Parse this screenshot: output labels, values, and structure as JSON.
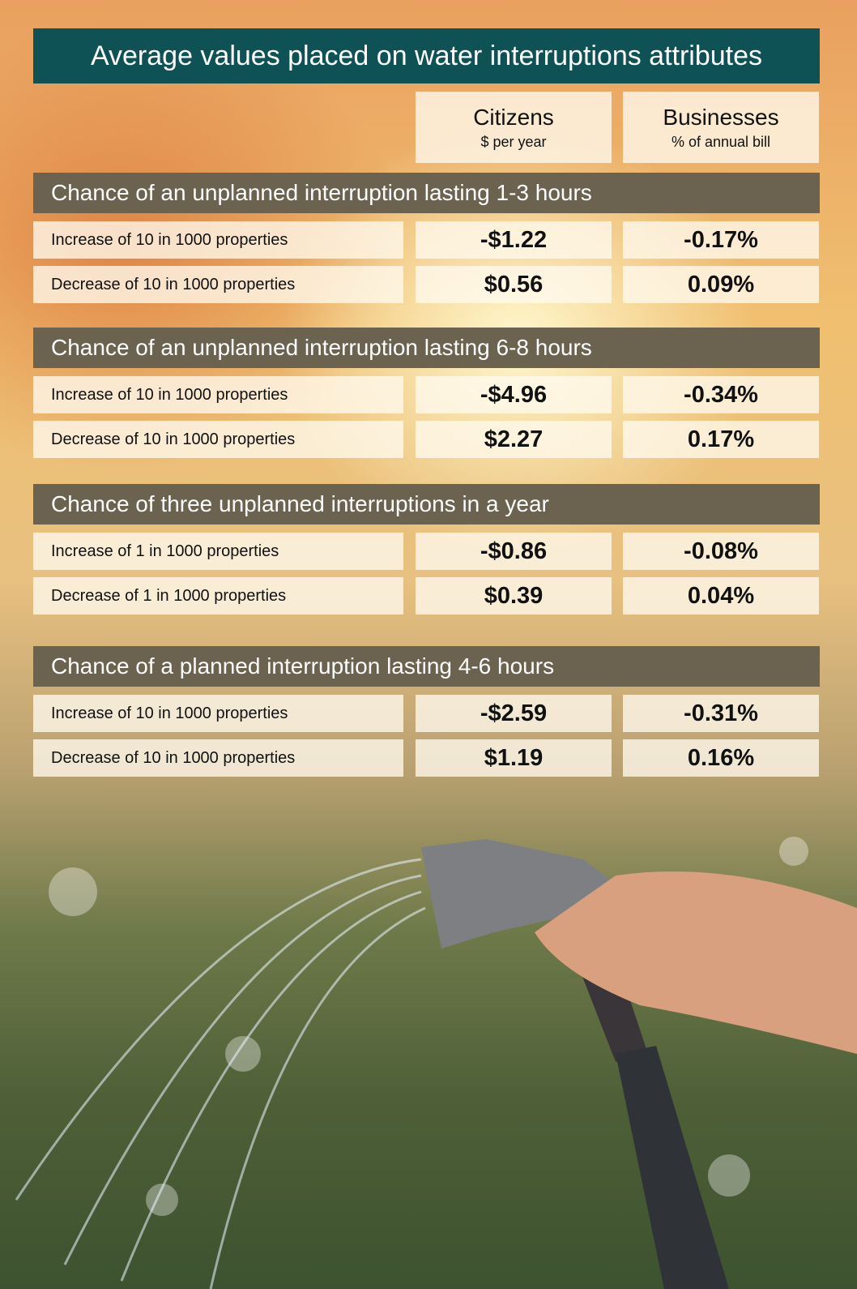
{
  "title": "Average values placed on water interruptions attributes",
  "columns": [
    {
      "name": "Citizens",
      "unit": "$ per year"
    },
    {
      "name": "Businesses",
      "unit": "% of annual bill"
    }
  ],
  "sections": [
    {
      "title": "Chance of an unplanned interruption lasting 1-3 hours",
      "rows": [
        [
          "Increase of 10 in 1000 properties",
          "-$1.22",
          "-0.17%"
        ],
        [
          "Decrease of 10 in 1000 properties",
          "$0.56",
          "0.09%"
        ]
      ]
    },
    {
      "title": "Chance of an unplanned interruption lasting 6-8 hours",
      "rows": [
        [
          "Increase of 10 in 1000 properties",
          "-$4.96",
          "-0.34%"
        ],
        [
          "Decrease of 10 in 1000 properties",
          "$2.27",
          "0.17%"
        ]
      ]
    },
    {
      "title": "Chance of three unplanned interruptions in a year",
      "rows": [
        [
          "Increase of 1 in 1000 properties",
          "-$0.86",
          "-0.08%"
        ],
        [
          "Decrease of 1 in 1000 properties",
          "$0.39",
          "0.04%"
        ]
      ]
    },
    {
      "title": "Chance of a planned interruption lasting 4-6 hours",
      "rows": [
        [
          "Increase of 10 in 1000 properties",
          "-$2.59",
          "-0.31%"
        ],
        [
          "Decrease of 10 in 1000 properties",
          "$1.19",
          "0.16%"
        ]
      ]
    }
  ]
}
